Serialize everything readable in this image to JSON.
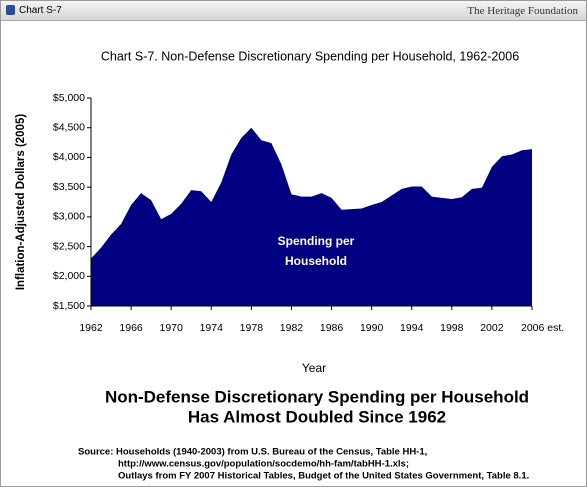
{
  "window": {
    "label": "Chart S-7",
    "publisher": "The Heritage Foundation"
  },
  "chart_data": {
    "type": "area",
    "title": "Chart S-7. Non-Defense Discretionary Spending per Household, 1962-2006",
    "y_label": "Inflation-Adjusted Dollars (2005)",
    "x_label": "Year",
    "annotation": [
      "Spending per",
      "Household"
    ],
    "caption": [
      "Non-Defense Discretionary Spending per Household",
      "Has Almost Doubled Since 1962"
    ],
    "source": [
      "Source: Households (1940-2003) from U.S. Bureau of the Census, Table HH-1,",
      "http://www.census.gov/population/socdemo/hh-fam/tabHH-1.xls;",
      "Outlays from FY 2007 Historical Tables, Budget of the United States Government, Table 8.1."
    ],
    "color": "#000080",
    "x": [
      1962,
      1963,
      1964,
      1965,
      1966,
      1967,
      1968,
      1969,
      1970,
      1971,
      1972,
      1973,
      1974,
      1975,
      1976,
      1977,
      1978,
      1979,
      1980,
      1981,
      1982,
      1983,
      1984,
      1985,
      1986,
      1987,
      1988,
      1989,
      1990,
      1991,
      1992,
      1993,
      1994,
      1995,
      1996,
      1997,
      1998,
      1999,
      2000,
      2001,
      2002,
      2003,
      2004,
      2005,
      2006
    ],
    "values": [
      2300,
      2480,
      2700,
      2880,
      3200,
      3400,
      3280,
      2960,
      3050,
      3220,
      3450,
      3430,
      3250,
      3580,
      4050,
      4330,
      4500,
      4290,
      4240,
      3880,
      3380,
      3340,
      3340,
      3400,
      3320,
      3120,
      3130,
      3140,
      3200,
      3250,
      3360,
      3470,
      3510,
      3510,
      3340,
      3320,
      3300,
      3330,
      3470,
      3490,
      3840,
      4020,
      4050,
      4120,
      4140
    ],
    "xlim": [
      1962,
      2006
    ],
    "xticks": [
      1962,
      1966,
      1970,
      1974,
      1978,
      1982,
      1986,
      1990,
      1994,
      1998,
      2002,
      {
        "value": 2006,
        "label": "2006 est."
      }
    ],
    "ylim": [
      1500,
      5000
    ],
    "yticks": [
      {
        "value": 1500,
        "label": "$1,500"
      },
      {
        "value": 2000,
        "label": "$2,000"
      },
      {
        "value": 2500,
        "label": "$2,500"
      },
      {
        "value": 3000,
        "label": "$3,000"
      },
      {
        "value": 3500,
        "label": "$3,500"
      },
      {
        "value": 4000,
        "label": "$4,000"
      },
      {
        "value": 4500,
        "label": "$4,500"
      },
      {
        "value": 5000,
        "label": "$5,000"
      }
    ]
  }
}
